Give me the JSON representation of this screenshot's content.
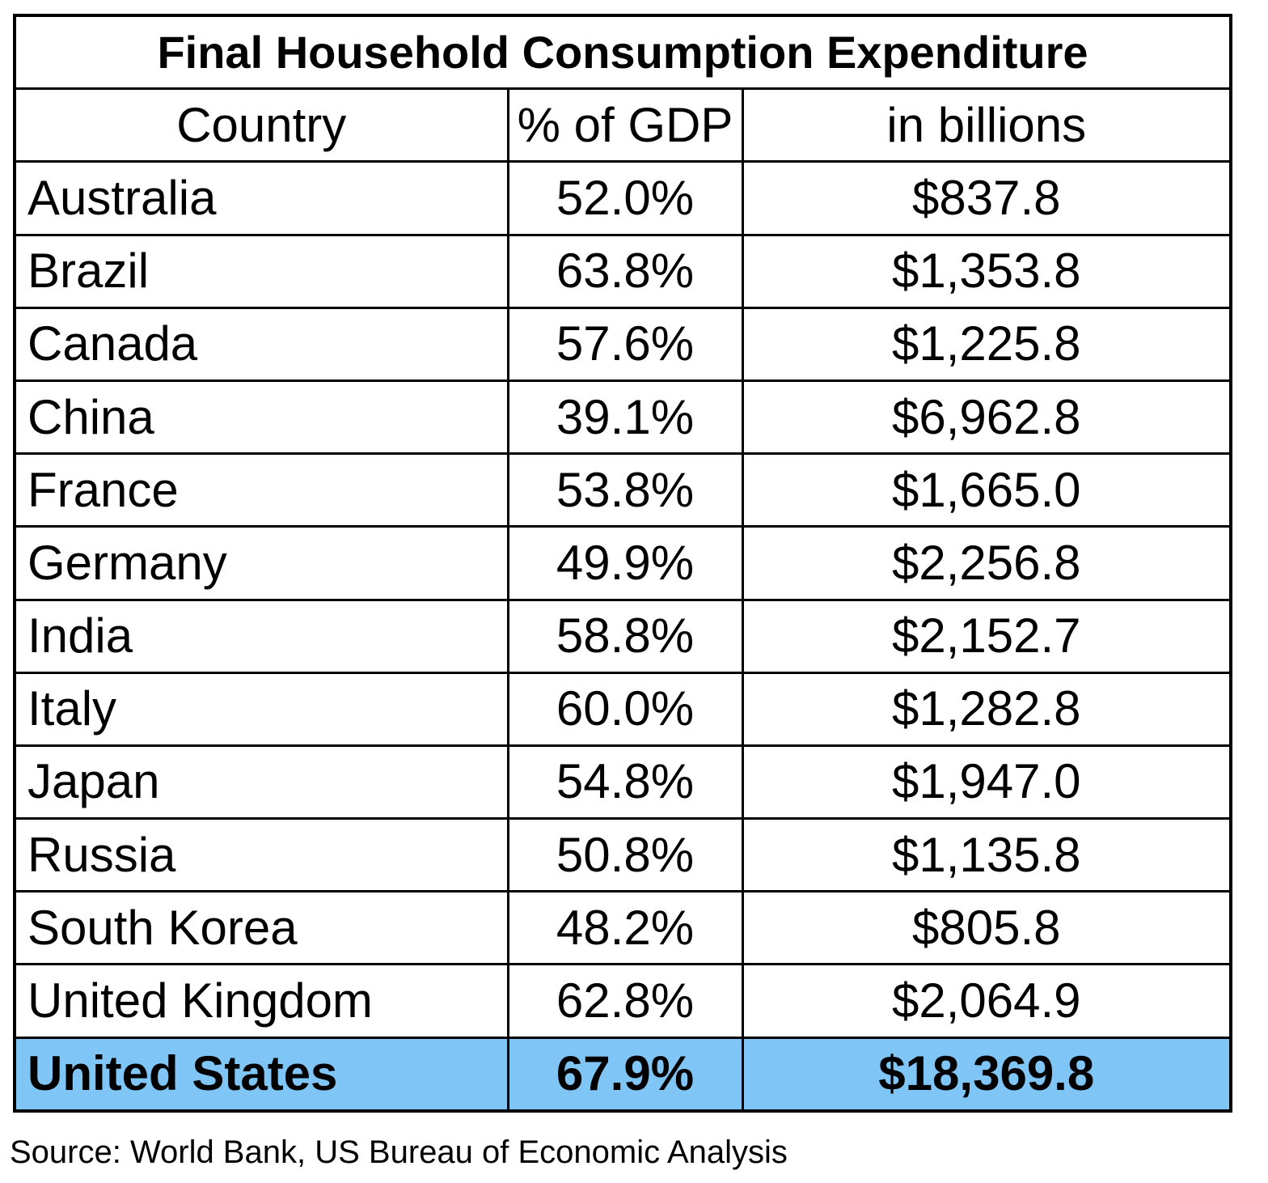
{
  "chart_data": {
    "type": "table",
    "title": "Final Household Consumption Expenditure",
    "columns": [
      "Country",
      "% of GDP",
      "in billions"
    ],
    "rows": [
      {
        "country": "Australia",
        "pct_gdp": "52.0%",
        "billions": "$837.8"
      },
      {
        "country": "Brazil",
        "pct_gdp": "63.8%",
        "billions": "$1,353.8"
      },
      {
        "country": "Canada",
        "pct_gdp": "57.6%",
        "billions": "$1,225.8"
      },
      {
        "country": "China",
        "pct_gdp": "39.1%",
        "billions": "$6,962.8"
      },
      {
        "country": "France",
        "pct_gdp": "53.8%",
        "billions": "$1,665.0"
      },
      {
        "country": "Germany",
        "pct_gdp": "49.9%",
        "billions": "$2,256.8"
      },
      {
        "country": "India",
        "pct_gdp": "58.8%",
        "billions": "$2,152.7"
      },
      {
        "country": "Italy",
        "pct_gdp": "60.0%",
        "billions": "$1,282.8"
      },
      {
        "country": "Japan",
        "pct_gdp": "54.8%",
        "billions": "$1,947.0"
      },
      {
        "country": "Russia",
        "pct_gdp": "50.8%",
        "billions": "$1,135.8"
      },
      {
        "country": "South Korea",
        "pct_gdp": "48.2%",
        "billions": "$805.8"
      },
      {
        "country": "United Kingdom",
        "pct_gdp": "62.8%",
        "billions": "$2,064.9"
      },
      {
        "country": "United States",
        "pct_gdp": "67.9%",
        "billions": "$18,369.8",
        "highlight": true
      }
    ],
    "highlight_color": "#7fc5f5"
  },
  "source": "Source: World Bank, US Bureau of Economic Analysis"
}
